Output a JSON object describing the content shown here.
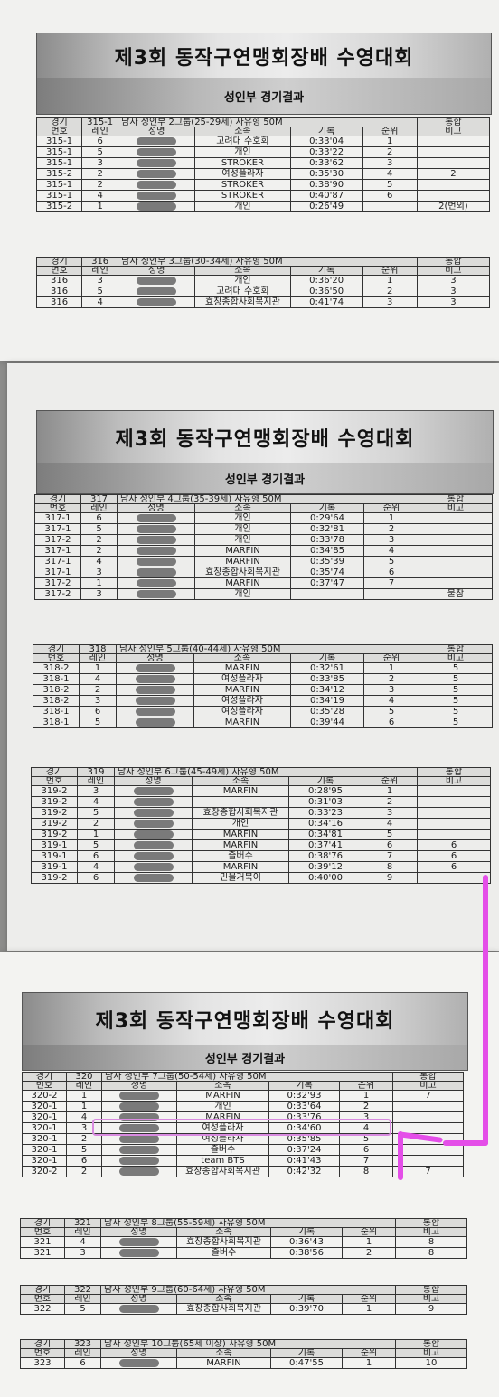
{
  "header": {
    "title": "제3회 동작구연맹회장배 수영대회",
    "division": "성인부 경기결과"
  },
  "columns": {
    "event_top": "경기",
    "event_bottom": "번호",
    "lane": "레인",
    "name": "성명",
    "club": "소속",
    "record": "기록",
    "rank": "순위",
    "combined_top": "통합",
    "combined_bottom": "비고"
  },
  "events": [
    {
      "no": "315-1",
      "title": "남자 성인부 2그룹(25-29세) 자유형 50M",
      "rows": [
        [
          "315-1",
          "6",
          "고려대 수호회",
          "0:33'04",
          "1",
          ""
        ],
        [
          "315-1",
          "5",
          "개인",
          "0:33'22",
          "2",
          ""
        ],
        [
          "315-1",
          "3",
          "STROKER",
          "0:33'62",
          "3",
          ""
        ],
        [
          "315-2",
          "2",
          "여성플라자",
          "0:35'30",
          "4",
          "2"
        ],
        [
          "315-1",
          "2",
          "STROKER",
          "0:38'90",
          "5",
          ""
        ],
        [
          "315-1",
          "4",
          "STROKER",
          "0:40'87",
          "6",
          ""
        ],
        [
          "315-2",
          "1",
          "개인",
          "0:26'49",
          "",
          "2(번외)"
        ]
      ]
    },
    {
      "no": "316",
      "title": "남자 성인부 3그룹(30-34세) 자유형 50M",
      "rows": [
        [
          "316",
          "3",
          "개인",
          "0:36'20",
          "1",
          "3"
        ],
        [
          "316",
          "5",
          "고려대 수호회",
          "0:36'50",
          "2",
          "3"
        ],
        [
          "316",
          "4",
          "효창종합사회복지관",
          "0:41'74",
          "3",
          "3"
        ]
      ]
    },
    {
      "no": "317",
      "title": "남자 성인부 4그룹(35-39세) 자유형 50M",
      "rows": [
        [
          "317-1",
          "6",
          "개인",
          "0:29'64",
          "1",
          ""
        ],
        [
          "317-1",
          "5",
          "개인",
          "0:32'81",
          "2",
          ""
        ],
        [
          "317-2",
          "2",
          "개인",
          "0:33'78",
          "3",
          ""
        ],
        [
          "317-1",
          "2",
          "MARFIN",
          "0:34'85",
          "4",
          ""
        ],
        [
          "317-1",
          "4",
          "MARFIN",
          "0:35'39",
          "5",
          ""
        ],
        [
          "317-1",
          "3",
          "효창종합사회복지관",
          "0:35'74",
          "6",
          ""
        ],
        [
          "317-2",
          "1",
          "MARFIN",
          "0:37'47",
          "7",
          ""
        ],
        [
          "317-2",
          "3",
          "개인",
          "",
          "",
          "불참"
        ]
      ]
    },
    {
      "no": "318",
      "title": "남자 성인부 5그룹(40-44세) 자유형 50M",
      "rows": [
        [
          "318-2",
          "1",
          "MARFIN",
          "0:32'61",
          "1",
          "5"
        ],
        [
          "318-1",
          "4",
          "여성플라자",
          "0:33'85",
          "2",
          "5"
        ],
        [
          "318-2",
          "2",
          "MARFIN",
          "0:34'12",
          "3",
          "5"
        ],
        [
          "318-2",
          "3",
          "여성플라자",
          "0:34'19",
          "4",
          "5"
        ],
        [
          "318-1",
          "6",
          "여성플라자",
          "0:35'28",
          "5",
          "5"
        ],
        [
          "318-1",
          "5",
          "MARFIN",
          "0:39'44",
          "6",
          "5"
        ]
      ]
    },
    {
      "no": "319",
      "title": "남자 성인부 6그룹(45-49세) 자유형 50M",
      "rows": [
        [
          "319-2",
          "3",
          "MARFIN",
          "0:28'95",
          "1",
          ""
        ],
        [
          "319-2",
          "4",
          "",
          "0:31'03",
          "2",
          ""
        ],
        [
          "319-2",
          "5",
          "효창종합사회복지관",
          "0:33'23",
          "3",
          ""
        ],
        [
          "319-2",
          "2",
          "개인",
          "0:34'16",
          "4",
          ""
        ],
        [
          "319-2",
          "1",
          "MARFIN",
          "0:34'81",
          "5",
          ""
        ],
        [
          "319-1",
          "5",
          "MARFIN",
          "0:37'41",
          "6",
          "6"
        ],
        [
          "319-1",
          "6",
          "즐버수",
          "0:38'76",
          "7",
          "6"
        ],
        [
          "319-1",
          "4",
          "MARFIN",
          "0:39'12",
          "8",
          "6"
        ],
        [
          "319-2",
          "6",
          "민물거북이",
          "0:40'00",
          "9",
          ""
        ]
      ]
    },
    {
      "no": "320",
      "title": "남자 성인부 7그룹(50-54세) 자유형 50M",
      "rows": [
        [
          "320-2",
          "1",
          "MARFIN",
          "0:32'93",
          "1",
          "7"
        ],
        [
          "320-1",
          "1",
          "개인",
          "0:33'64",
          "2",
          ""
        ],
        [
          "320-1",
          "4",
          "MARFIN",
          "0:33'76",
          "3",
          ""
        ],
        [
          "320-1",
          "3",
          "여성플라자",
          "0:34'60",
          "4",
          ""
        ],
        [
          "320-1",
          "2",
          "여성플라자",
          "0:35'85",
          "5",
          ""
        ],
        [
          "320-1",
          "5",
          "즐버수",
          "0:37'24",
          "6",
          ""
        ],
        [
          "320-1",
          "6",
          "team BTS",
          "0:41'43",
          "7",
          ""
        ],
        [
          "320-2",
          "2",
          "효창종합사회복지관",
          "0:42'32",
          "8",
          "7"
        ]
      ]
    },
    {
      "no": "321",
      "title": "남자 성인부 8그룹(55-59세) 자유형 50M",
      "rows": [
        [
          "321",
          "4",
          "효창종합사회복지관",
          "0:36'43",
          "1",
          "8"
        ],
        [
          "321",
          "3",
          "즐버수",
          "0:38'56",
          "2",
          "8"
        ]
      ]
    },
    {
      "no": "322",
      "title": "남자 성인부 9그룹(60-64세) 자유형 50M",
      "rows": [
        [
          "322",
          "5",
          "효창종합사회복지관",
          "0:39'70",
          "1",
          "9"
        ]
      ]
    },
    {
      "no": "323",
      "title": "남자 성인부 10그룹(65세 이상) 자유형 50M",
      "rows": [
        [
          "323",
          "6",
          "MARFIN",
          "0:47'55",
          "1",
          "10"
        ]
      ]
    }
  ]
}
